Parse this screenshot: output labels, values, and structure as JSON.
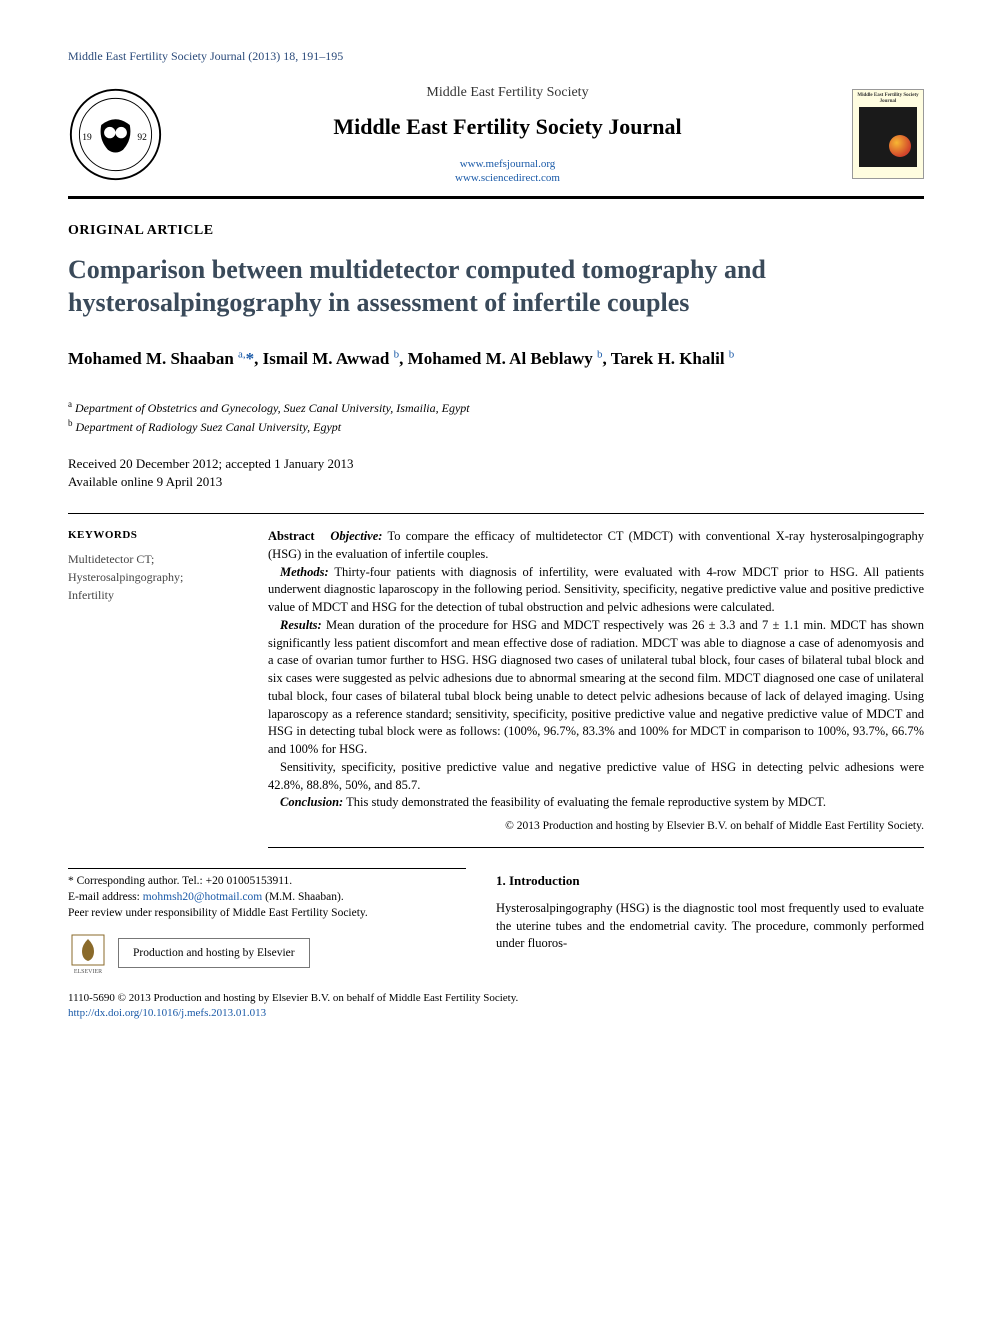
{
  "running_head": "Middle East Fertility Society Journal (2013) 18, 191–195",
  "header": {
    "society": "Middle East Fertility Society",
    "journal": "Middle East Fertility Society Journal",
    "url1": "www.mefsjournal.org",
    "url2": "www.sciencedirect.com",
    "cover_label": "Middle East Fertility Society Journal"
  },
  "article_type": "ORIGINAL ARTICLE",
  "title": "Comparison between multidetector computed tomography and hysterosalpingography in assessment of infertile couples",
  "authors_html": "Mohamed M. Shaaban <sup>a,</sup><span class='star'>*</span>, Ismail M. Awwad <sup>b</sup>, Mohamed M. Al Beblawy <sup>b</sup>, Tarek H. Khalil <sup>b</sup>",
  "affiliations": {
    "a": "Department of Obstetrics and Gynecology, Suez Canal University, Ismailia, Egypt",
    "b": "Department of Radiology Suez Canal University, Egypt"
  },
  "dates": {
    "line1": "Received 20 December 2012; accepted 1 January 2013",
    "line2": "Available online 9 April 2013"
  },
  "keywords": {
    "heading": "KEYWORDS",
    "items": "Multidetector CT;\nHysterosalpingography;\nInfertility"
  },
  "abstract": {
    "label": "Abstract",
    "objective_label": "Objective:",
    "objective": "To compare the efficacy of multidetector CT (MDCT) with conventional X-ray hysterosalpingography (HSG) in the evaluation of infertile couples.",
    "methods_label": "Methods:",
    "methods": "Thirty-four patients with diagnosis of infertility, were evaluated with 4-row MDCT prior to HSG. All patients underwent diagnostic laparoscopy in the following period. Sensitivity, specificity, negative predictive value and positive predictive value of MDCT and HSG for the detection of tubal obstruction and pelvic adhesions were calculated.",
    "results_label": "Results:",
    "results": "Mean duration of the procedure for HSG and MDCT respectively was 26 ± 3.3 and 7 ± 1.1 min. MDCT has shown significantly less patient discomfort and mean effective dose of radiation. MDCT was able to diagnose a case of adenomyosis and a case of ovarian tumor further to HSG. HSG diagnosed two cases of unilateral tubal block, four cases of bilateral tubal block and six cases were suggested as pelvic adhesions due to abnormal smearing at the second film. MDCT diagnosed one case of unilateral tubal block, four cases of bilateral tubal block being unable to detect pelvic adhesions because of lack of delayed imaging. Using laparoscopy as a reference standard; sensitivity, specificity, positive predictive value and negative predictive value of MDCT and HSG in detecting tubal block were as follows: (100%, 96.7%, 83.3% and 100% for MDCT in comparison to 100%, 93.7%, 66.7% and 100% for HSG.",
    "results2": "Sensitivity, specificity, positive predictive value and negative predictive value of HSG in detecting pelvic adhesions were 42.8%, 88.8%, 50%, and 85.7.",
    "conclusion_label": "Conclusion:",
    "conclusion": "This study demonstrated the feasibility of evaluating the female reproductive system by MDCT.",
    "copyright": "© 2013 Production and hosting by Elsevier B.V. on behalf of Middle East Fertility Society."
  },
  "footer": {
    "corresponding": "Corresponding author. Tel.: +20 01005153911.",
    "email_label": "E-mail address:",
    "email": "mohmsh20@hotmail.com",
    "email_suffix": "(M.M. Shaaban).",
    "peer_review": "Peer review under responsibility of Middle East Fertility Society.",
    "hosting": "Production and hosting by Elsevier",
    "elsevier_label": "ELSEVIER"
  },
  "intro": {
    "heading": "1. Introduction",
    "para": "Hysterosalpingography (HSG) is the diagnostic tool most frequently used to evaluate the uterine tubes and the endometrial cavity. The procedure, commonly performed under fluoros-"
  },
  "bottom": {
    "issn_line": "1110-5690 © 2013 Production and hosting by Elsevier B.V. on behalf of Middle East Fertility Society.",
    "doi": "http://dx.doi.org/10.1016/j.mefs.2013.01.013"
  },
  "colors": {
    "link": "#1a5aa8",
    "title": "#3a4a5a",
    "rule": "#000000"
  }
}
